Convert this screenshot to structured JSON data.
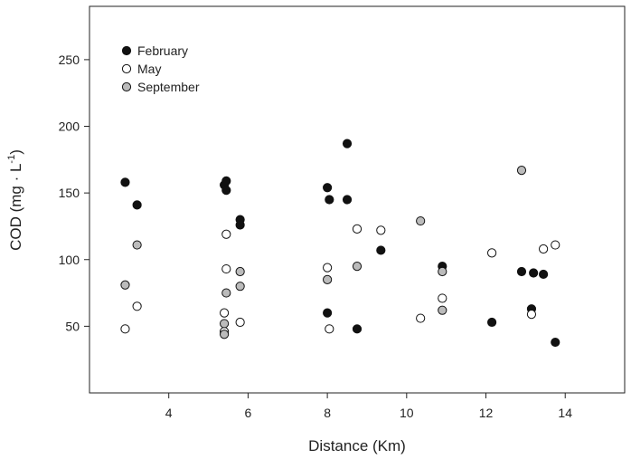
{
  "chart_data": {
    "type": "scatter",
    "xlabel": "Distance (Km)",
    "ylabel": "COD (mg · L",
    "ylabel_sup": "-1",
    "ylabel_close": ")",
    "xlim": [
      2,
      15.5
    ],
    "ylim": [
      0,
      290
    ],
    "xticks": [
      4,
      6,
      8,
      10,
      12,
      14
    ],
    "yticks": [
      50,
      100,
      150,
      200,
      250
    ],
    "grid": false,
    "legend_position": "top-left",
    "series": [
      {
        "name": "February",
        "color": "#111111",
        "points": [
          {
            "x": 2.9,
            "y": 158
          },
          {
            "x": 3.2,
            "y": 141
          },
          {
            "x": 5.4,
            "y": 156
          },
          {
            "x": 5.45,
            "y": 159
          },
          {
            "x": 5.45,
            "y": 152
          },
          {
            "x": 5.8,
            "y": 130
          },
          {
            "x": 5.8,
            "y": 126
          },
          {
            "x": 8.0,
            "y": 154
          },
          {
            "x": 8.05,
            "y": 145
          },
          {
            "x": 8.0,
            "y": 60
          },
          {
            "x": 8.5,
            "y": 187
          },
          {
            "x": 8.5,
            "y": 145
          },
          {
            "x": 8.75,
            "y": 48
          },
          {
            "x": 9.35,
            "y": 107
          },
          {
            "x": 10.9,
            "y": 95
          },
          {
            "x": 12.15,
            "y": 53
          },
          {
            "x": 12.9,
            "y": 91
          },
          {
            "x": 13.2,
            "y": 90
          },
          {
            "x": 13.45,
            "y": 89
          },
          {
            "x": 13.15,
            "y": 63
          },
          {
            "x": 13.75,
            "y": 38
          }
        ]
      },
      {
        "name": "May",
        "color": "#ffffff",
        "points": [
          {
            "x": 2.9,
            "y": 48
          },
          {
            "x": 3.2,
            "y": 65
          },
          {
            "x": 5.45,
            "y": 119
          },
          {
            "x": 5.45,
            "y": 93
          },
          {
            "x": 5.4,
            "y": 60
          },
          {
            "x": 5.4,
            "y": 46
          },
          {
            "x": 5.8,
            "y": 53
          },
          {
            "x": 8.0,
            "y": 94
          },
          {
            "x": 8.05,
            "y": 48
          },
          {
            "x": 8.75,
            "y": 123
          },
          {
            "x": 9.35,
            "y": 122
          },
          {
            "x": 10.35,
            "y": 56
          },
          {
            "x": 10.9,
            "y": 71
          },
          {
            "x": 12.15,
            "y": 105
          },
          {
            "x": 13.15,
            "y": 59
          },
          {
            "x": 13.45,
            "y": 108
          },
          {
            "x": 13.75,
            "y": 111
          }
        ]
      },
      {
        "name": "September",
        "color": "#bbbbbb",
        "points": [
          {
            "x": 2.9,
            "y": 81
          },
          {
            "x": 3.2,
            "y": 111
          },
          {
            "x": 5.45,
            "y": 75
          },
          {
            "x": 5.4,
            "y": 52
          },
          {
            "x": 5.4,
            "y": 44
          },
          {
            "x": 5.8,
            "y": 91
          },
          {
            "x": 5.8,
            "y": 80
          },
          {
            "x": 8.0,
            "y": 85
          },
          {
            "x": 8.75,
            "y": 95
          },
          {
            "x": 10.35,
            "y": 129
          },
          {
            "x": 10.9,
            "y": 91
          },
          {
            "x": 10.9,
            "y": 62
          },
          {
            "x": 12.9,
            "y": 167
          }
        ]
      }
    ]
  }
}
